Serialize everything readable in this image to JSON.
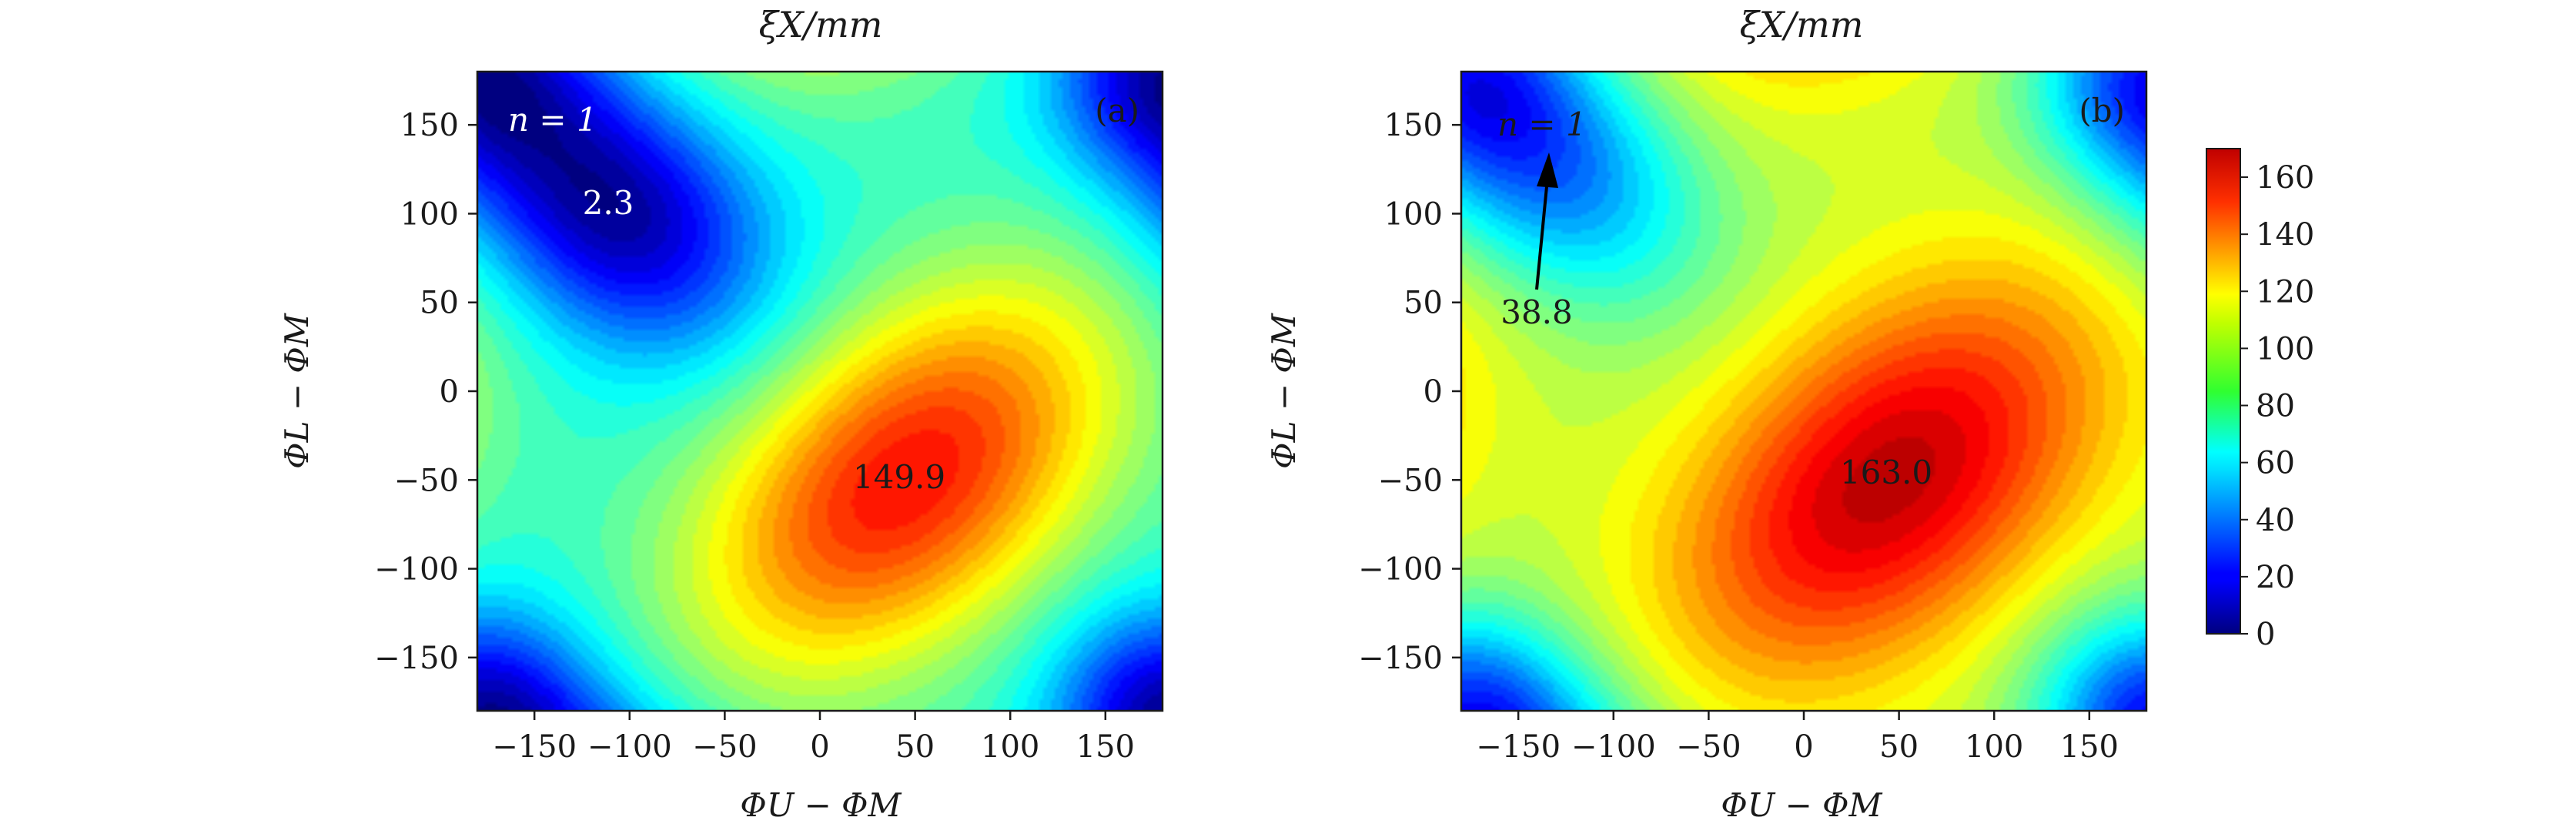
{
  "chart_data": [
    {
      "type": "heatmap",
      "panel": "(a)",
      "title": "ξX/mm",
      "xlabel": "ΦU − ΦM",
      "ylabel": "ΦL − ΦM",
      "xlim": [
        -180,
        180
      ],
      "ylim": [
        -180,
        180
      ],
      "xticks": [
        -150,
        -100,
        -50,
        0,
        50,
        100,
        150
      ],
      "yticks": [
        -150,
        -100,
        -50,
        0,
        50,
        100,
        150
      ],
      "xtick_labels": [
        "−150",
        "−100",
        "−50",
        "0",
        "50",
        "100",
        "150"
      ],
      "ytick_labels": [
        "−150",
        "−100",
        "−50",
        "0",
        "50",
        "100",
        "150"
      ],
      "zlim": [
        0,
        170
      ],
      "minimum": {
        "x": -110,
        "y": 105,
        "value": 2.3,
        "label": "2.3"
      },
      "maximum": {
        "x": 45,
        "y": -50,
        "value": 149.9,
        "label": "149.9"
      },
      "annotations": [
        {
          "text": "n = 1",
          "x": -160,
          "y": 150
        }
      ]
    },
    {
      "type": "heatmap",
      "panel": "(b)",
      "title": "ξX/mm",
      "xlabel": "ΦU − ΦM",
      "ylabel": "ΦL − ΦM",
      "xlim": [
        -180,
        180
      ],
      "ylim": [
        -180,
        180
      ],
      "xticks": [
        -150,
        -100,
        -50,
        0,
        50,
        100,
        150
      ],
      "yticks": [
        -150,
        -100,
        -50,
        0,
        50,
        100,
        150
      ],
      "xtick_labels": [
        "−150",
        "−100",
        "−50",
        "0",
        "50",
        "100",
        "150"
      ],
      "ytick_labels": [
        "−150",
        "−100",
        "−50",
        "0",
        "50",
        "100",
        "150"
      ],
      "zlim": [
        0,
        170
      ],
      "minimum": {
        "x": -135,
        "y": 130,
        "value": 38.8,
        "label": "38.8"
      },
      "maximum": {
        "x": 45,
        "y": -50,
        "value": 163.0,
        "label": "163.0"
      },
      "annotations": [
        {
          "text": "n = 1",
          "x": -160,
          "y": 150
        },
        {
          "text": "38.8",
          "x": -140,
          "y": 40,
          "arrow_to": [
            -135,
            130
          ]
        }
      ]
    }
  ],
  "colorbar": {
    "min": 0,
    "max": 170,
    "ticks": [
      0,
      20,
      40,
      60,
      80,
      100,
      120,
      140,
      160
    ],
    "tick_labels": [
      "0",
      "20",
      "40",
      "60",
      "80",
      "100",
      "120",
      "140",
      "160"
    ],
    "colormap": "jet"
  }
}
